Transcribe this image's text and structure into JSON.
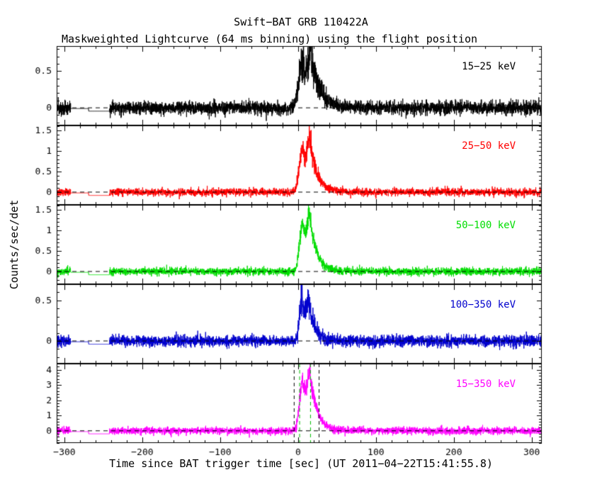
{
  "title": "Swift−BAT GRB 110422A",
  "subtitle": "Maskweighted Lightcurve (64 ms binning) using the flight position",
  "xlabel": "Time since BAT trigger time [sec] (UT 2011−04−22T15:41:55.8)",
  "ylabel": "Counts/sec/det",
  "chart_data": {
    "type": "line",
    "x_range": [
      -310,
      313
    ],
    "x_major_ticks": [
      -300,
      -200,
      -100,
      0,
      100,
      200,
      300
    ],
    "x_tick_labels": [
      "−300",
      "−200",
      "−100",
      "0",
      "100",
      "200",
      "300"
    ],
    "x_minor_step": 20,
    "sample_step": 0.15,
    "grid": false,
    "zero_line_style": "dashed",
    "gap": {
      "start": -292,
      "mid": -269,
      "end": -242
    },
    "burst_markers": {
      "black_dashed": [
        -5,
        27
      ],
      "green_dashed": [
        2,
        16
      ],
      "black_color": "#000000",
      "green_color": "#00bb00"
    },
    "panels": [
      {
        "label": "15−25 keV",
        "color": "#000000",
        "ylim": [
          -0.24,
          0.84
        ],
        "yticks": [
          0,
          0.5
        ],
        "ytick_labels": [
          "0",
          "0.5"
        ],
        "y_minor_step": 0.1,
        "noise_sigma": 0.045,
        "gap_levels": [
          -0.01,
          -0.045
        ],
        "pulses": [
          {
            "t0": 6,
            "rise": 5,
            "decay": 10,
            "amp": 0.62
          },
          {
            "t0": 16,
            "rise": 3,
            "decay": 13,
            "amp": 0.5
          }
        ]
      },
      {
        "label": "25−50 keV",
        "color": "#ff0000",
        "ylim": [
          -0.31,
          1.62
        ],
        "yticks": [
          0,
          0.5,
          1,
          1.5
        ],
        "ytick_labels": [
          "0",
          "0.5",
          "1",
          "1.5"
        ],
        "y_minor_step": 0.1,
        "noise_sigma": 0.045,
        "gap_levels": [
          -0.02,
          -0.08
        ],
        "pulses": [
          {
            "t0": 6,
            "rise": 4,
            "decay": 8,
            "amp": 1.1
          },
          {
            "t0": 15,
            "rise": 3,
            "decay": 10,
            "amp": 0.95
          }
        ]
      },
      {
        "label": "50−100 keV",
        "color": "#00dd00",
        "ylim": [
          -0.31,
          1.62
        ],
        "yticks": [
          0,
          0.5,
          1,
          1.5
        ],
        "ytick_labels": [
          "0",
          "0.5",
          "1",
          "1.5"
        ],
        "y_minor_step": 0.1,
        "noise_sigma": 0.045,
        "gap_levels": [
          -0.02,
          -0.08
        ],
        "pulses": [
          {
            "t0": 6,
            "rise": 4,
            "decay": 8,
            "amp": 1.2
          },
          {
            "t0": 15,
            "rise": 3,
            "decay": 9,
            "amp": 1.0
          }
        ]
      },
      {
        "label": "100−350 keV",
        "color": "#0000cd",
        "ylim": [
          -0.28,
          0.7
        ],
        "yticks": [
          0,
          0.5
        ],
        "ytick_labels": [
          "0",
          "0.5"
        ],
        "y_minor_step": 0.1,
        "noise_sigma": 0.035,
        "gap_levels": [
          -0.01,
          -0.04
        ],
        "pulses": [
          {
            "t0": 5,
            "rise": 3,
            "decay": 6,
            "amp": 0.55
          },
          {
            "t0": 14,
            "rise": 3,
            "decay": 8,
            "amp": 0.38
          }
        ]
      },
      {
        "label": "15−350 keV",
        "color": "#ff00ff",
        "ylim": [
          -0.8,
          4.4
        ],
        "yticks": [
          0,
          1,
          2,
          3,
          4
        ],
        "ytick_labels": [
          "0",
          "1",
          "2",
          "3",
          "4"
        ],
        "y_minor_step": 0.2,
        "noise_sigma": 0.12,
        "gap_levels": [
          -0.05,
          -0.2
        ],
        "pulses": [
          {
            "t0": 6,
            "rise": 4,
            "decay": 8,
            "amp": 3.3
          },
          {
            "t0": 15,
            "rise": 3,
            "decay": 10,
            "amp": 2.7
          }
        ]
      }
    ]
  }
}
